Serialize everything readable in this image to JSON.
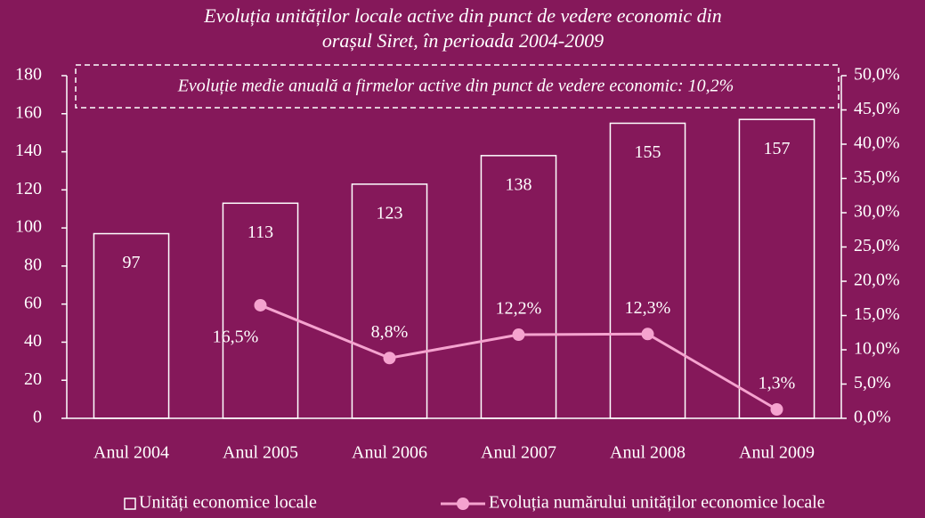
{
  "chart_data": {
    "type": "bar",
    "title": [
      "Evoluția unităților locale active din punct de vedere economic din",
      "orașul Siret, în perioada 2004-2009"
    ],
    "annotation": "Evoluție medie anuală a firmelor active din punct de vedere economic: 10,2%",
    "categories": [
      "Anul 2004",
      "Anul 2005",
      "Anul 2006",
      "Anul 2007",
      "Anul 2008",
      "Anul 2009"
    ],
    "series": [
      {
        "name": "Unități economice locale",
        "type": "bar",
        "color": "#ffffff",
        "values": [
          97,
          113,
          123,
          138,
          155,
          157
        ]
      },
      {
        "name": "Evoluția numărului unităților economice locale",
        "type": "line",
        "axis": "y2",
        "color": "#f5a3cf",
        "values": [
          null,
          16.5,
          8.8,
          12.2,
          12.3,
          1.3
        ],
        "value_labels": [
          null,
          "16,5%",
          "8,8%",
          "12,2%",
          "12,3%",
          "1,3%"
        ]
      }
    ],
    "ylim": [
      0,
      180
    ],
    "yticks": [
      0,
      20,
      40,
      60,
      80,
      100,
      120,
      140,
      160,
      180
    ],
    "y2lim": [
      0,
      50
    ],
    "y2ticks": [
      {
        "value": 0,
        "label": "0,0%"
      },
      {
        "value": 5,
        "label": "5,0%"
      },
      {
        "value": 10,
        "label": "10,0%"
      },
      {
        "value": 15,
        "label": "15,0%"
      },
      {
        "value": 20,
        "label": "20,0%"
      },
      {
        "value": 25,
        "label": "25,0%"
      },
      {
        "value": 30,
        "label": "30,0%"
      },
      {
        "value": 35,
        "label": "35,0%"
      },
      {
        "value": 40,
        "label": "40,0%"
      },
      {
        "value": 45,
        "label": "45,0%"
      },
      {
        "value": 50,
        "label": "50,0%"
      }
    ],
    "grid": false
  }
}
